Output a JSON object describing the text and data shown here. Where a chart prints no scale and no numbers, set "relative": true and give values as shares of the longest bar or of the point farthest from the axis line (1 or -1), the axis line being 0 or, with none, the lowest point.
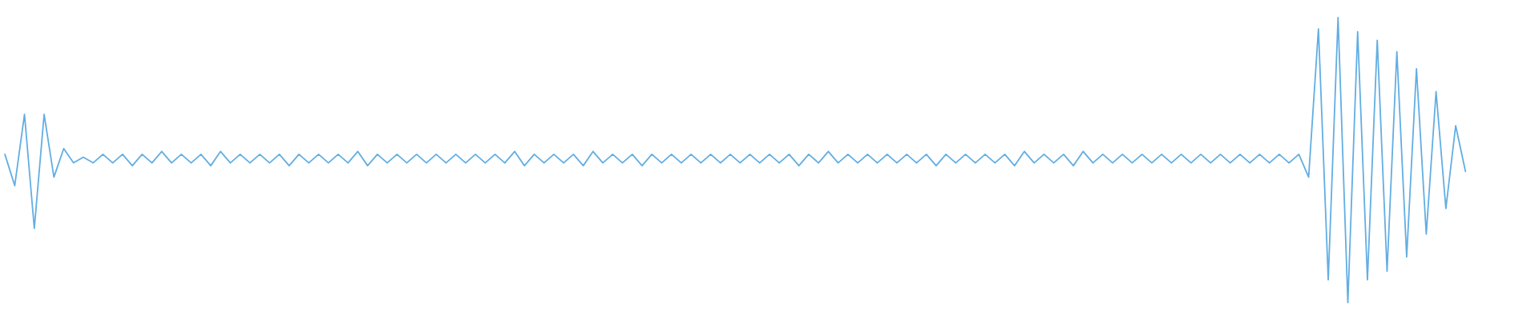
{
  "chart_data": {
    "type": "line",
    "relative": true,
    "color": "#62aee3",
    "categories": [
      null,
      null,
      null,
      null,
      null,
      null,
      null,
      null,
      null,
      null,
      null,
      null,
      null,
      null,
      null,
      null,
      null,
      null,
      null,
      null,
      null,
      null,
      null,
      null,
      null,
      null,
      null,
      null,
      null,
      null,
      null,
      null,
      null,
      null,
      null,
      null,
      null,
      null,
      null,
      null,
      null,
      null,
      null,
      null,
      null,
      null,
      null,
      null,
      null,
      null,
      null,
      null,
      null,
      null,
      null,
      null,
      null,
      null,
      null,
      null,
      null,
      null,
      null,
      null,
      null,
      null,
      null,
      null,
      null,
      null,
      null,
      null,
      null,
      null,
      null,
      null,
      null,
      null,
      null,
      null,
      null,
      null,
      null,
      null,
      null,
      null,
      null,
      null,
      null,
      null,
      null,
      null,
      null,
      null,
      null,
      null,
      null,
      null,
      null,
      null,
      null,
      null,
      null,
      null,
      null,
      null,
      null,
      null,
      null,
      null,
      null,
      null,
      null,
      null,
      null,
      null,
      null,
      null,
      null,
      null,
      null,
      null,
      null,
      null,
      null,
      null,
      null,
      null,
      null,
      null,
      null,
      null,
      null,
      null,
      null,
      null,
      null,
      null,
      null,
      null,
      null,
      null,
      null,
      null,
      null,
      null,
      null,
      null,
      null,
      null,
      null,
      null,
      null,
      null,
      null,
      null,
      null
    ],
    "values": [
      0.52,
      0.41,
      0.66,
      0.26,
      0.66,
      0.44,
      0.54,
      0.49,
      0.51,
      0.49,
      0.52,
      0.49,
      0.52,
      0.48,
      0.52,
      0.49,
      0.53,
      0.49,
      0.52,
      0.49,
      0.52,
      0.48,
      0.53,
      0.49,
      0.52,
      0.49,
      0.52,
      0.49,
      0.52,
      0.48,
      0.52,
      0.49,
      0.52,
      0.49,
      0.52,
      0.49,
      0.53,
      0.48,
      0.52,
      0.49,
      0.52,
      0.49,
      0.52,
      0.49,
      0.52,
      0.49,
      0.52,
      0.49,
      0.52,
      0.49,
      0.52,
      0.49,
      0.53,
      0.48,
      0.52,
      0.49,
      0.52,
      0.49,
      0.52,
      0.48,
      0.53,
      0.49,
      0.52,
      0.49,
      0.52,
      0.48,
      0.52,
      0.49,
      0.52,
      0.49,
      0.52,
      0.49,
      0.52,
      0.49,
      0.52,
      0.49,
      0.52,
      0.49,
      0.52,
      0.49,
      0.52,
      0.48,
      0.52,
      0.49,
      0.53,
      0.49,
      0.52,
      0.49,
      0.52,
      0.49,
      0.52,
      0.49,
      0.52,
      0.49,
      0.52,
      0.48,
      0.52,
      0.49,
      0.52,
      0.49,
      0.52,
      0.49,
      0.52,
      0.48,
      0.53,
      0.49,
      0.52,
      0.49,
      0.52,
      0.48,
      0.53,
      0.49,
      0.52,
      0.49,
      0.52,
      0.49,
      0.52,
      0.49,
      0.52,
      0.49,
      0.52,
      0.49,
      0.52,
      0.49,
      0.52,
      0.49,
      0.52,
      0.49,
      0.52,
      0.49,
      0.52,
      0.49,
      0.52,
      0.44,
      0.96,
      0.08,
      1.0,
      0.0,
      0.95,
      0.08,
      0.92,
      0.11,
      0.88,
      0.16,
      0.82,
      0.24,
      0.74,
      0.33,
      0.62,
      0.46,
      null,
      null,
      null,
      null,
      null,
      null,
      null
    ]
  }
}
